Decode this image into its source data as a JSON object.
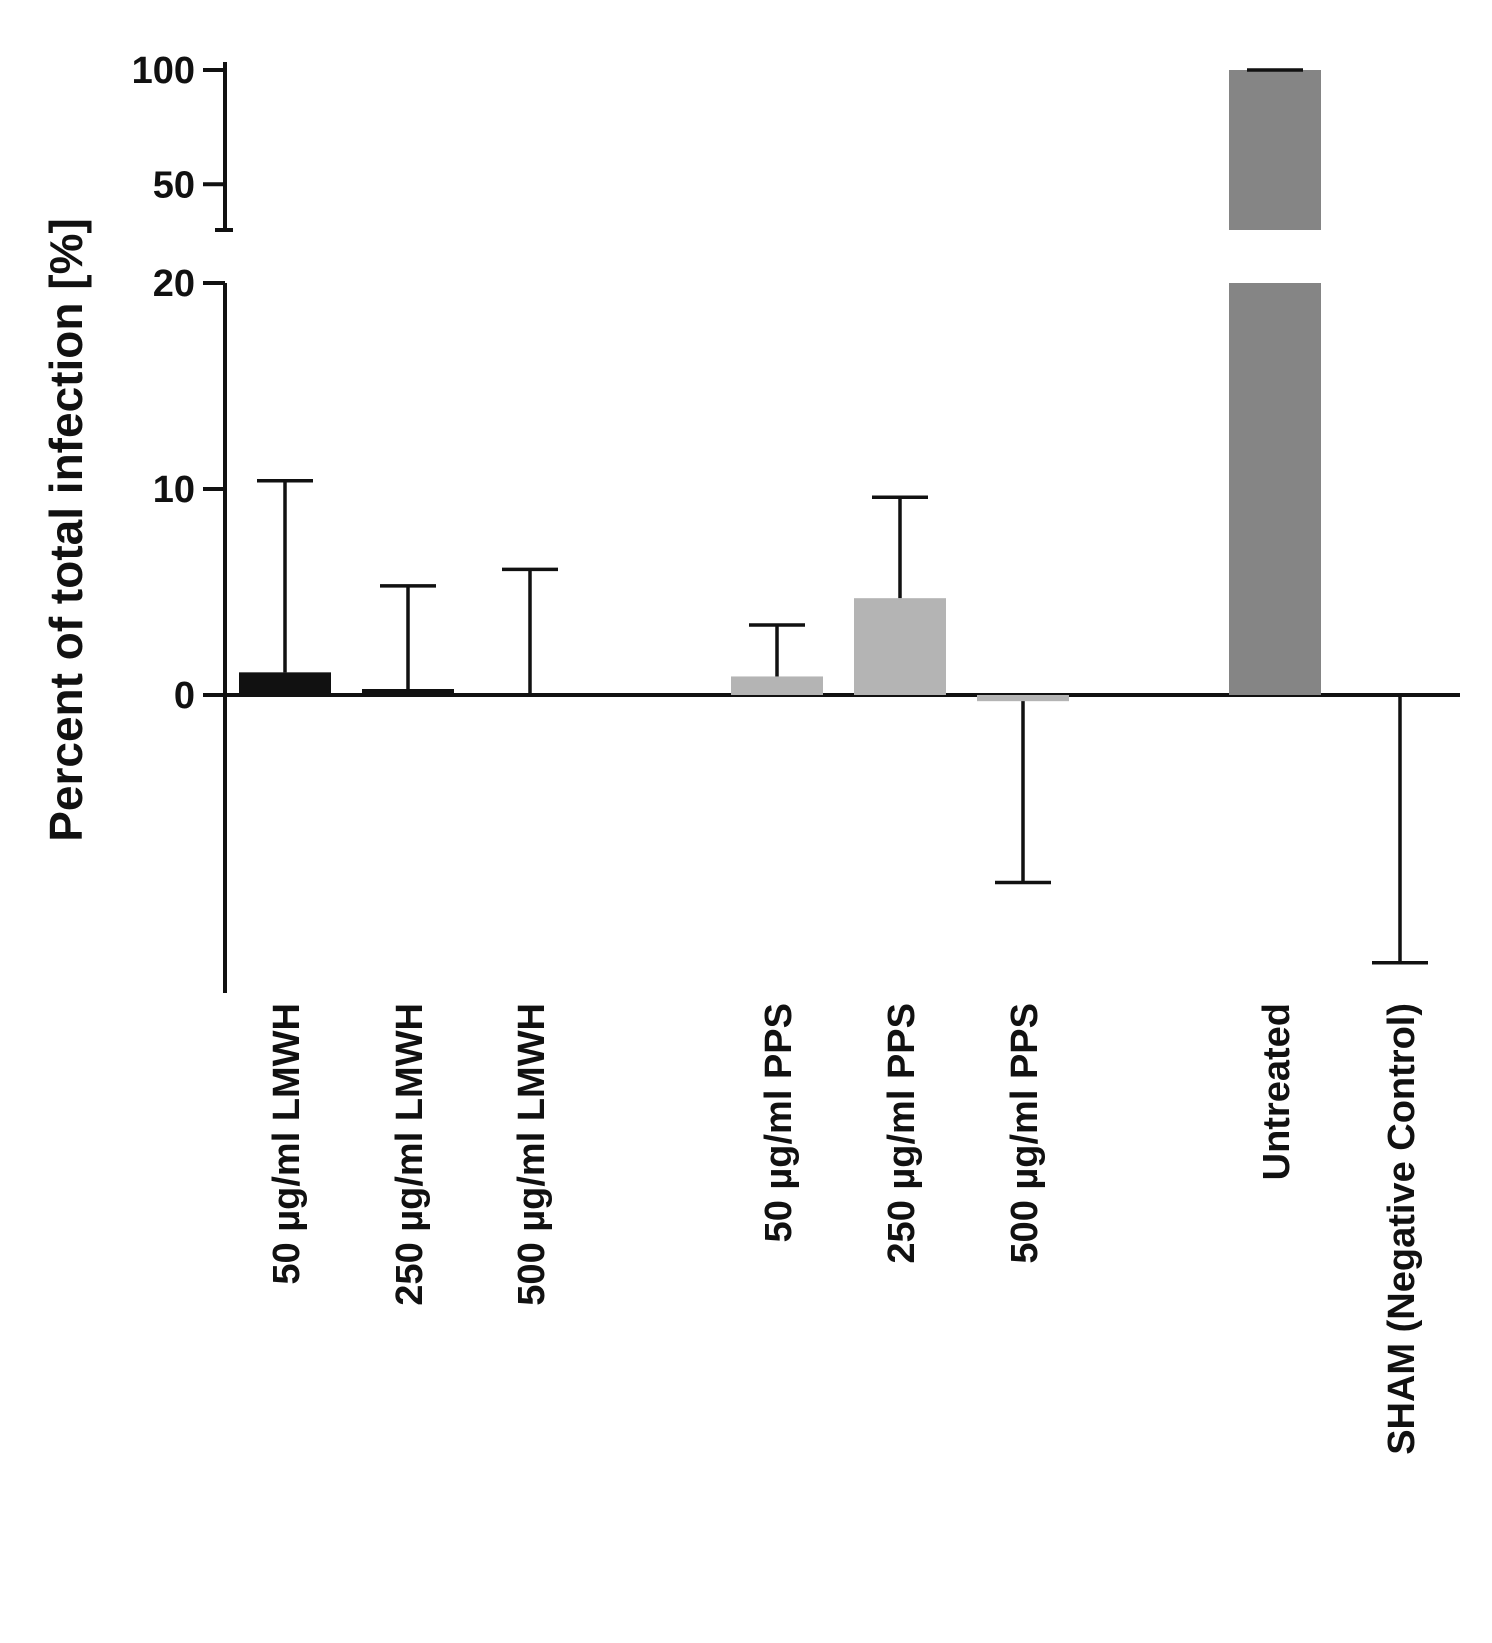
{
  "chart_data": {
    "type": "bar",
    "title": "",
    "xlabel": "",
    "ylabel": "Percent of total infection [%]",
    "y_axis_break": {
      "lower_range": [
        -15,
        20
      ],
      "upper_range": [
        30,
        100
      ]
    },
    "lower_ticks": [
      0,
      10,
      20
    ],
    "upper_ticks": [
      50,
      100
    ],
    "categories": [
      "50 µg/ml LMWH",
      "250 µg/ml LMWH",
      "500 µg/ml LMWH",
      "50 µg/ml PPS",
      "250 µg/ml PPS",
      "500 µg/ml PPS",
      "Untreated",
      "SHAM (Negative Control)"
    ],
    "series": [
      {
        "name": "Percent of total infection",
        "values": [
          1.1,
          0.2,
          0.0,
          0.9,
          4.7,
          -0.3,
          100.0,
          0.0
        ],
        "error_bar_ends": [
          10.4,
          5.3,
          6.1,
          3.4,
          9.6,
          -9.1,
          101.5,
          -13.0
        ],
        "colors": [
          "#111111",
          "#111111",
          "#111111",
          "#b4b4b4",
          "#b4b4b4",
          "#b4b4b4",
          "#858585",
          "#858585"
        ]
      }
    ]
  }
}
